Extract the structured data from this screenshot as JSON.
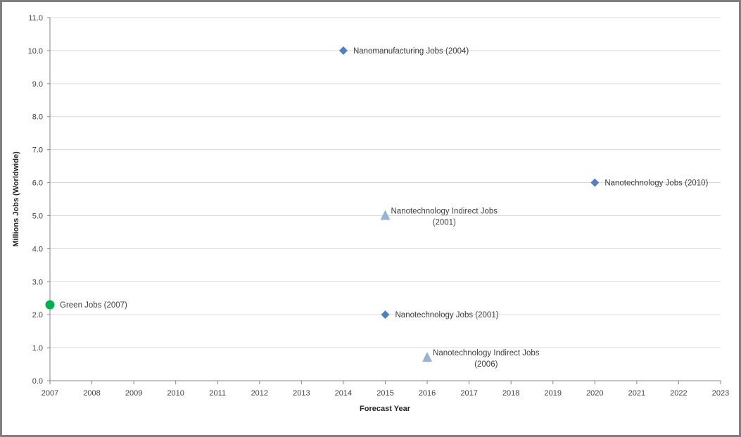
{
  "chart_data": {
    "type": "scatter",
    "xlabel": "Forecast Year",
    "ylabel": "Millions Jobs (Worldwide)",
    "xlim": [
      2007,
      2023
    ],
    "ylim": [
      0,
      11
    ],
    "x_ticks": [
      "2007",
      "2008",
      "2009",
      "2010",
      "2011",
      "2012",
      "2013",
      "2014",
      "2015",
      "2016",
      "2017",
      "2018",
      "2019",
      "2020",
      "2021",
      "2022",
      "2023"
    ],
    "y_ticks": [
      "0.0",
      "1.0",
      "2.0",
      "3.0",
      "4.0",
      "5.0",
      "6.0",
      "7.0",
      "8.0",
      "9.0",
      "10.0",
      "11.0"
    ],
    "grid": "horizontal",
    "legend": "none",
    "colors": {
      "diamond": "#4f81bd",
      "triangle": "#95b3d7",
      "circle": "#00b050"
    },
    "points": [
      {
        "x": 2014,
        "y": 10.0,
        "marker": "diamond",
        "label": [
          "Nanomanufacturing Jobs (2004)"
        ]
      },
      {
        "x": 2020,
        "y": 6.0,
        "marker": "diamond",
        "label": [
          "Nanotechnology Jobs (2010)"
        ]
      },
      {
        "x": 2015,
        "y": 5.0,
        "marker": "triangle",
        "label": [
          "Nanotechnology Indirect Jobs",
          "(2001)"
        ]
      },
      {
        "x": 2007,
        "y": 2.3,
        "marker": "circle",
        "label": [
          "Green Jobs (2007)"
        ]
      },
      {
        "x": 2015,
        "y": 2.0,
        "marker": "diamond",
        "label": [
          "Nanotechnology Jobs (2001)"
        ]
      },
      {
        "x": 2016,
        "y": 0.7,
        "marker": "triangle",
        "label": [
          "Nanotechnology Indirect Jobs",
          "(2006)"
        ]
      }
    ]
  }
}
